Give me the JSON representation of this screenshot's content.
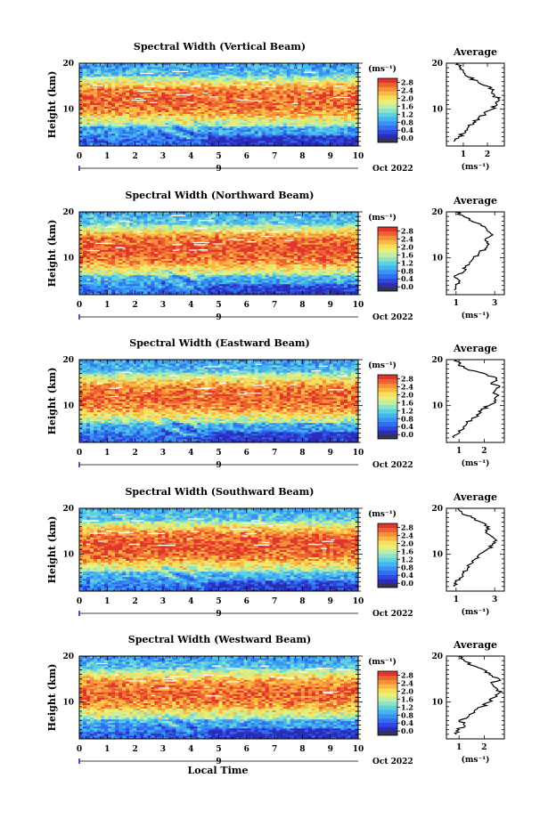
{
  "chart_data": [
    {
      "type": "heatmap",
      "title": "Spectral Width (Vertical Beam)",
      "ylabel": "Height (km)",
      "x": [
        0,
        1,
        2,
        3,
        4,
        5,
        6,
        7,
        8,
        9,
        10
      ],
      "ylim": [
        2,
        20
      ],
      "yticks": [
        10,
        20
      ],
      "date_label": "Oct 2022",
      "day_marker": "9",
      "colorbar": {
        "unit": "(ms⁻¹)",
        "ticks": [
          "0.0",
          "0.4",
          "0.8",
          "1.2",
          "1.6",
          "2.0",
          "2.4",
          "2.8"
        ],
        "range": [
          0,
          3.0
        ]
      },
      "average": {
        "title": "Average",
        "xlabel": "(ms⁻¹)",
        "xticks": [
          1,
          2
        ],
        "xlim": [
          0.3,
          2.7
        ],
        "heights": [
          3,
          4,
          5,
          6,
          7,
          8,
          9,
          10,
          11,
          12,
          13,
          14,
          15,
          16,
          17,
          18,
          19,
          20
        ],
        "values": [
          0.6,
          0.8,
          1.1,
          1.2,
          1.4,
          1.6,
          1.9,
          2.2,
          2.4,
          2.5,
          2.3,
          2.2,
          2.0,
          1.6,
          1.2,
          1.0,
          0.9,
          0.8
        ]
      }
    },
    {
      "type": "heatmap",
      "title": "Spectral Width (Northward Beam)",
      "ylabel": "Height (km)",
      "x": [
        0,
        1,
        2,
        3,
        4,
        5,
        6,
        7,
        8,
        9,
        10
      ],
      "ylim": [
        2,
        20
      ],
      "yticks": [
        10,
        20
      ],
      "date_label": "Oct 2022",
      "day_marker": "9",
      "colorbar": {
        "unit": "(ms⁻¹)",
        "ticks": [
          "0.0",
          "0.4",
          "0.8",
          "1.2",
          "1.6",
          "2.0",
          "2.4",
          "2.8"
        ],
        "range": [
          0,
          3.0
        ]
      },
      "average": {
        "title": "Average",
        "xlabel": "(ms⁻¹)",
        "xticks": [
          1,
          3
        ],
        "xlim": [
          0.5,
          3.5
        ],
        "heights": [
          3,
          4,
          5,
          6,
          7,
          8,
          9,
          10,
          11,
          12,
          13,
          14,
          15,
          16,
          17,
          18,
          19,
          20
        ],
        "values": [
          0.9,
          1.0,
          1.2,
          0.9,
          1.4,
          1.5,
          1.7,
          1.9,
          2.2,
          2.5,
          2.7,
          2.5,
          2.9,
          2.6,
          2.3,
          1.8,
          1.4,
          1.0
        ]
      }
    },
    {
      "type": "heatmap",
      "title": "Spectral Width (Eastward Beam)",
      "ylabel": "Height (km)",
      "x": [
        0,
        1,
        2,
        3,
        4,
        5,
        6,
        7,
        8,
        9,
        10
      ],
      "ylim": [
        2,
        20
      ],
      "yticks": [
        10,
        20
      ],
      "date_label": "Oct 2022",
      "day_marker": "9",
      "colorbar": {
        "unit": "(ms⁻¹)",
        "ticks": [
          "0.0",
          "0.4",
          "0.8",
          "1.2",
          "1.6",
          "2.0",
          "2.4",
          "2.8"
        ],
        "range": [
          0,
          3.0
        ]
      },
      "average": {
        "title": "Average",
        "xlabel": "(ms⁻¹)",
        "xticks": [
          1,
          2
        ],
        "xlim": [
          0.5,
          2.8
        ],
        "heights": [
          3,
          4,
          5,
          6,
          7,
          8,
          9,
          10,
          11,
          12,
          13,
          14,
          15,
          16,
          17,
          18,
          19,
          20
        ],
        "values": [
          0.8,
          1.0,
          1.2,
          1.3,
          1.5,
          1.7,
          1.9,
          2.2,
          2.4,
          2.5,
          2.4,
          2.6,
          2.3,
          2.5,
          2.0,
          1.3,
          1.0,
          0.9
        ]
      }
    },
    {
      "type": "heatmap",
      "title": "Spectral Width (Southward Beam)",
      "ylabel": "Height (km)",
      "x": [
        0,
        1,
        2,
        3,
        4,
        5,
        6,
        7,
        8,
        9,
        10
      ],
      "ylim": [
        2,
        20
      ],
      "yticks": [
        10,
        20
      ],
      "date_label": "Oct 2022",
      "day_marker": "9",
      "colorbar": {
        "unit": "(ms⁻¹)",
        "ticks": [
          "0.0",
          "0.4",
          "0.8",
          "1.2",
          "1.6",
          "2.0",
          "2.4",
          "2.8"
        ],
        "range": [
          0,
          3.0
        ]
      },
      "average": {
        "title": "Average",
        "xlabel": "(ms⁻¹)",
        "xticks": [
          1,
          3
        ],
        "xlim": [
          0.5,
          3.5
        ],
        "heights": [
          3,
          4,
          5,
          6,
          7,
          8,
          9,
          10,
          11,
          12,
          13,
          14,
          15,
          16,
          17,
          18,
          19,
          20
        ],
        "values": [
          0.9,
          1.0,
          1.3,
          1.4,
          1.6,
          1.8,
          2.0,
          2.2,
          2.6,
          2.9,
          3.1,
          2.8,
          2.6,
          2.7,
          2.3,
          1.8,
          1.3,
          1.1
        ]
      }
    },
    {
      "type": "heatmap",
      "title": "Spectral Width (Westward Beam)",
      "ylabel": "Height (km)",
      "x": [
        0,
        1,
        2,
        3,
        4,
        5,
        6,
        7,
        8,
        9,
        10
      ],
      "ylim": [
        2,
        20
      ],
      "yticks": [
        10,
        20
      ],
      "date_label": "Oct 2022",
      "day_marker": "9",
      "xlabel": "Local Time",
      "colorbar": {
        "unit": "(ms⁻¹)",
        "ticks": [
          "0.0",
          "0.4",
          "0.8",
          "1.2",
          "1.6",
          "2.0",
          "2.4",
          "2.8"
        ],
        "range": [
          0,
          3.0
        ]
      },
      "average": {
        "title": "Average",
        "xlabel": "(ms⁻¹)",
        "xticks": [
          1,
          2
        ],
        "xlim": [
          0.5,
          2.8
        ],
        "heights": [
          3,
          4,
          5,
          6,
          7,
          8,
          9,
          10,
          11,
          12,
          13,
          14,
          15,
          16,
          17,
          18,
          19,
          20
        ],
        "values": [
          0.9,
          1.0,
          1.2,
          1.0,
          1.4,
          1.6,
          1.9,
          2.2,
          2.4,
          2.6,
          2.5,
          2.3,
          2.6,
          2.2,
          2.0,
          1.5,
          1.2,
          1.0
        ]
      }
    }
  ]
}
